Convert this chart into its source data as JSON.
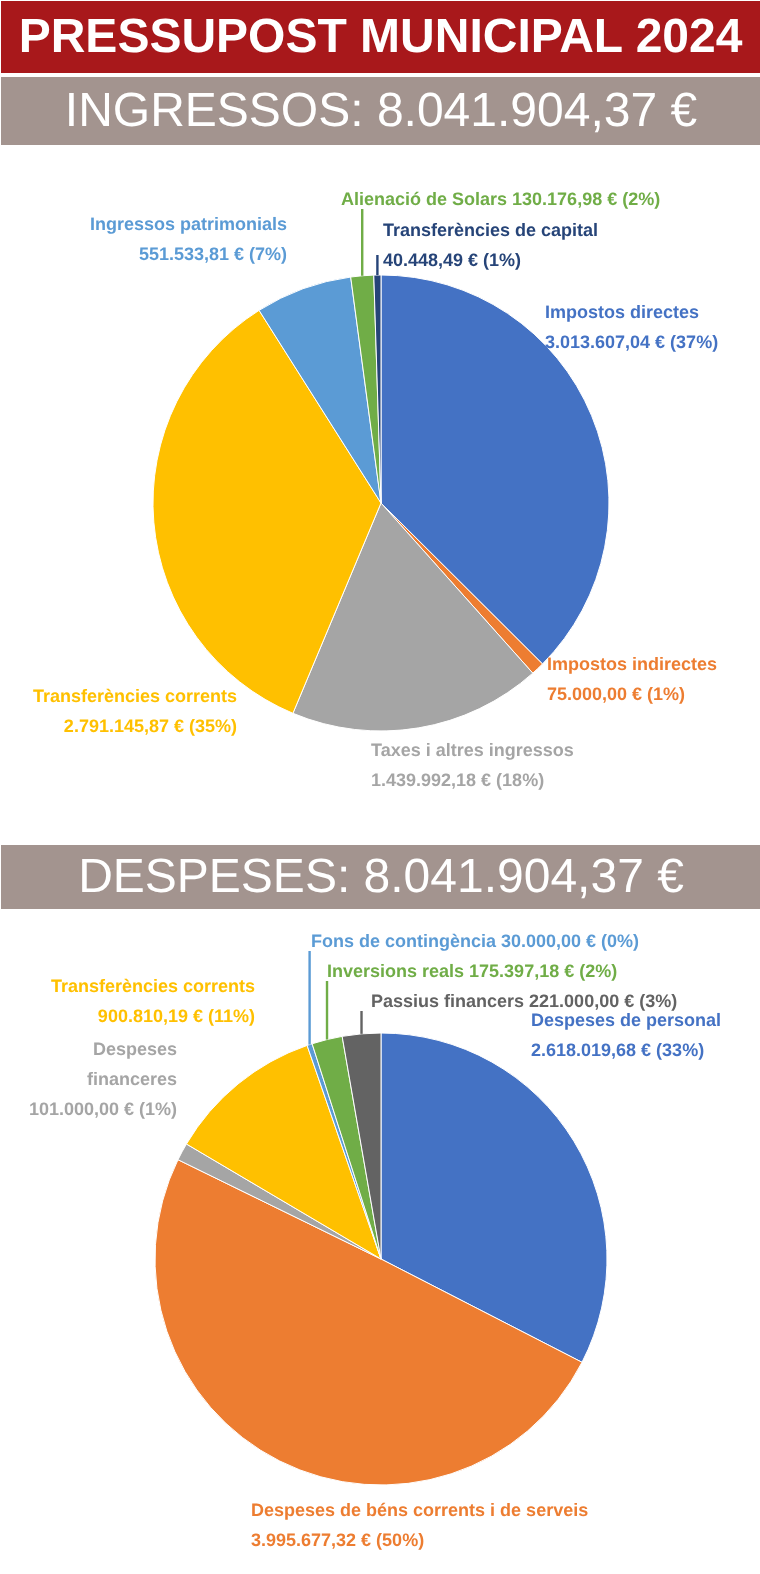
{
  "chart_data": [
    {
      "type": "pie",
      "title": "PRESSUPOST MUNICIPAL 2024",
      "subtitle": "INGRESSOS: 8.041.904,37 €",
      "categories": [
        "Impostos directes",
        "Impostos indirectes",
        "Taxes i altres ingressos",
        "Transferències corrents",
        "Ingressos patrimonials",
        "Alienació de Solars",
        "Transferències de capital"
      ],
      "values": [
        3013607.04,
        75000.0,
        1439992.18,
        2791145.87,
        551533.81,
        130176.98,
        40448.49
      ],
      "value_labels": [
        "3.013.607,04 € (37%)",
        "75.000,00 € (1%)",
        "1.439.992,18 € (18%)",
        "2.791.145,87 € (35%)",
        "551.533,81 € (7%)",
        "130.176,98 € (2%)",
        "40.448,49 € (1%)"
      ],
      "colors": [
        "#4472c4",
        "#ed7d31",
        "#a5a5a5",
        "#ffc000",
        "#5b9bd5",
        "#70ad47",
        "#264478"
      ]
    },
    {
      "type": "pie",
      "title": "DESPESES: 8.041.904,37 €",
      "categories": [
        "Despeses de personal",
        "Despeses de béns corrents i de serveis",
        "Despeses financeres",
        "Transferències corrents",
        "Fons de contingència",
        "Inversions reals",
        "Passius financers"
      ],
      "values": [
        2618019.68,
        3995677.32,
        101000.0,
        900810.19,
        30000.0,
        175397.18,
        221000.0
      ],
      "value_labels": [
        "2.618.019,68 € (33%)",
        "3.995.677,32 € (50%)",
        "101.000,00 € (1%)",
        "900.810,19 € (11%)",
        "30.000,00 € (0%)",
        "175.397,18 € (2%)",
        "221.000,00 € (3%)"
      ],
      "colors": [
        "#4472c4",
        "#ed7d31",
        "#a5a5a5",
        "#ffc000",
        "#5b9bd5",
        "#70ad47",
        "#636363"
      ]
    }
  ]
}
